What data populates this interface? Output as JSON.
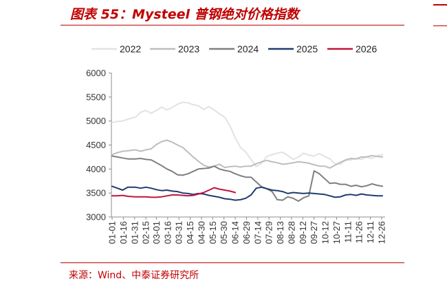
{
  "figure": {
    "title": "图表 55：Mysteel 普钢绝对价格指数",
    "source": "来源：Wind、中泰证券研究所"
  },
  "chart_data": {
    "type": "line",
    "title": "",
    "xlabel": "",
    "ylabel": "",
    "ylim": [
      3000,
      6000
    ],
    "yticks": [
      3000,
      3500,
      4000,
      4500,
      5000,
      5500,
      6000
    ],
    "xticks": [
      "01-01",
      "01-16",
      "01-31",
      "02-15",
      "03-01",
      "03-16",
      "03-31",
      "04-15",
      "04-30",
      "05-15",
      "05-30",
      "06-14",
      "06-29",
      "07-14",
      "07-29",
      "08-13",
      "08-28",
      "09-12",
      "09-27",
      "10-12",
      "10-27",
      "11-11",
      "11-26",
      "12-11",
      "12-26"
    ],
    "legend_position": "top",
    "grid": false,
    "series": [
      {
        "name": "2022",
        "color": "#e2e2e2",
        "x": [
          "01-01",
          "01-08",
          "01-15",
          "01-22",
          "02-01",
          "02-08",
          "02-15",
          "02-22",
          "03-01",
          "03-08",
          "03-15",
          "03-22",
          "03-29",
          "04-05",
          "04-12",
          "04-19",
          "04-26",
          "05-03",
          "05-10",
          "05-17",
          "05-24",
          "05-31",
          "06-07",
          "06-14",
          "06-21",
          "06-28",
          "07-05",
          "07-12",
          "07-19",
          "07-26",
          "08-02",
          "08-09",
          "08-16",
          "08-23",
          "08-30",
          "09-06",
          "09-13",
          "09-20",
          "09-27",
          "10-04",
          "10-11",
          "10-18",
          "10-25",
          "11-01",
          "11-08",
          "11-15",
          "11-22",
          "11-29",
          "12-06",
          "12-13",
          "12-20",
          "12-27"
        ],
        "values": [
          4970,
          4990,
          5000,
          5040,
          5080,
          5180,
          5220,
          5160,
          5220,
          5290,
          5230,
          5280,
          5350,
          5390,
          5380,
          5340,
          5320,
          5240,
          5300,
          5230,
          5150,
          5080,
          4900,
          4650,
          4450,
          4350,
          4200,
          4050,
          4120,
          4260,
          4300,
          4330,
          4350,
          4280,
          4200,
          4250,
          4330,
          4290,
          4270,
          4320,
          4260,
          4210,
          4110,
          4100,
          4180,
          4190,
          4220,
          4200,
          4250,
          4220,
          4280,
          4300
        ]
      },
      {
        "name": "2023",
        "color": "#bdbdbd",
        "x": [
          "01-01",
          "01-08",
          "01-15",
          "01-22",
          "02-01",
          "02-08",
          "02-15",
          "02-22",
          "03-01",
          "03-08",
          "03-15",
          "03-22",
          "03-29",
          "04-05",
          "04-12",
          "04-19",
          "04-26",
          "05-03",
          "05-10",
          "05-17",
          "05-24",
          "05-31",
          "06-07",
          "06-14",
          "06-21",
          "06-28",
          "07-05",
          "07-12",
          "07-19",
          "07-26",
          "08-02",
          "08-09",
          "08-16",
          "08-23",
          "08-30",
          "09-06",
          "09-13",
          "09-20",
          "09-27",
          "10-04",
          "10-11",
          "10-18",
          "10-25",
          "11-01",
          "11-08",
          "11-15",
          "11-22",
          "11-29",
          "12-06",
          "12-13",
          "12-20",
          "12-27"
        ],
        "values": [
          4300,
          4340,
          4370,
          4380,
          4400,
          4370,
          4400,
          4420,
          4510,
          4570,
          4600,
          4560,
          4500,
          4450,
          4350,
          4250,
          4160,
          4080,
          4040,
          4060,
          4100,
          4030,
          4050,
          4060,
          4040,
          4060,
          4060,
          4110,
          4150,
          4180,
          4150,
          4130,
          4100,
          4110,
          4130,
          4150,
          4140,
          4120,
          4090,
          4060,
          4060,
          4020,
          4080,
          4140,
          4190,
          4220,
          4210,
          4250,
          4250,
          4280,
          4260,
          4250
        ]
      },
      {
        "name": "2024",
        "color": "#7f7f7f",
        "x": [
          "01-01",
          "01-08",
          "01-15",
          "01-22",
          "02-01",
          "02-08",
          "02-15",
          "02-22",
          "03-01",
          "03-08",
          "03-15",
          "03-22",
          "03-29",
          "04-05",
          "04-12",
          "04-19",
          "04-26",
          "05-03",
          "05-10",
          "05-17",
          "05-24",
          "05-31",
          "06-07",
          "06-14",
          "06-21",
          "06-28",
          "07-05",
          "07-12",
          "07-19",
          "07-26",
          "08-02",
          "08-09",
          "08-16",
          "08-23",
          "08-30",
          "09-06",
          "09-13",
          "09-20",
          "09-27",
          "10-04",
          "10-11",
          "10-18",
          "10-25",
          "11-01",
          "11-08",
          "11-15",
          "11-22",
          "11-29",
          "12-06",
          "12-13",
          "12-20",
          "12-27"
        ],
        "values": [
          4270,
          4250,
          4230,
          4210,
          4210,
          4220,
          4200,
          4190,
          4130,
          4070,
          4000,
          3950,
          3880,
          3870,
          3900,
          3950,
          4000,
          4010,
          4020,
          4060,
          4000,
          3970,
          3950,
          3900,
          3860,
          3830,
          3830,
          3730,
          3630,
          3590,
          3530,
          3360,
          3350,
          3420,
          3390,
          3330,
          3400,
          3440,
          3960,
          3900,
          3800,
          3700,
          3710,
          3680,
          3680,
          3640,
          3660,
          3630,
          3650,
          3690,
          3660,
          3640
        ]
      },
      {
        "name": "2025",
        "color": "#1f3b6e",
        "x": [
          "01-01",
          "01-08",
          "01-15",
          "01-22",
          "02-01",
          "02-08",
          "02-15",
          "02-22",
          "03-01",
          "03-08",
          "03-15",
          "03-22",
          "03-29",
          "04-05",
          "04-12",
          "04-19",
          "04-26",
          "05-03",
          "05-10",
          "05-17",
          "05-24",
          "05-31",
          "06-07",
          "06-14",
          "06-21",
          "06-28",
          "07-05",
          "07-12",
          "07-19",
          "07-26",
          "08-02",
          "08-09",
          "08-16",
          "08-23",
          "08-30",
          "09-06",
          "09-13",
          "09-20",
          "09-27",
          "10-04",
          "10-11",
          "10-18",
          "10-25",
          "11-01",
          "11-08",
          "11-15",
          "11-22",
          "11-29",
          "12-06",
          "12-13",
          "12-20",
          "12-27"
        ],
        "values": [
          3640,
          3600,
          3560,
          3620,
          3620,
          3600,
          3620,
          3600,
          3570,
          3550,
          3560,
          3540,
          3530,
          3500,
          3490,
          3470,
          3490,
          3480,
          3450,
          3430,
          3410,
          3380,
          3370,
          3350,
          3360,
          3390,
          3460,
          3600,
          3620,
          3590,
          3560,
          3550,
          3530,
          3490,
          3510,
          3500,
          3490,
          3500,
          3490,
          3480,
          3470,
          3440,
          3410,
          3420,
          3460,
          3470,
          3450,
          3480,
          3460,
          3450,
          3440,
          3440
        ]
      },
      {
        "name": "2026",
        "color": "#c0143c",
        "x": [
          "01-01",
          "01-08",
          "01-15",
          "01-22",
          "02-01",
          "02-08",
          "02-15",
          "02-22",
          "03-01",
          "03-08",
          "03-15",
          "03-22",
          "03-29",
          "04-05",
          "04-12",
          "04-19",
          "04-26",
          "05-03",
          "05-10",
          "05-17",
          "05-24",
          "05-31",
          "06-07",
          "06-14"
        ],
        "values": [
          3440,
          3440,
          3450,
          3430,
          3420,
          3420,
          3420,
          3410,
          3410,
          3420,
          3440,
          3460,
          3460,
          3450,
          3440,
          3450,
          3480,
          3510,
          3560,
          3610,
          3580,
          3560,
          3540,
          3510
        ]
      }
    ]
  }
}
